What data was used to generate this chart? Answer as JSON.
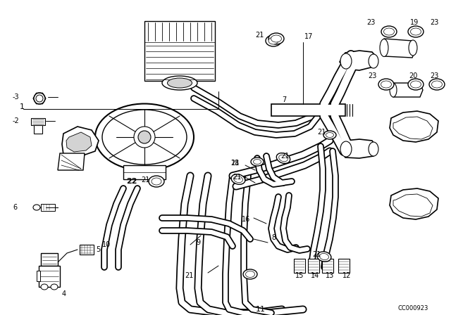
{
  "bg_color": "#ffffff",
  "line_color": "#000000",
  "fig_width": 6.4,
  "fig_height": 4.48,
  "dpi": 100,
  "diagram_id": "CC000923"
}
